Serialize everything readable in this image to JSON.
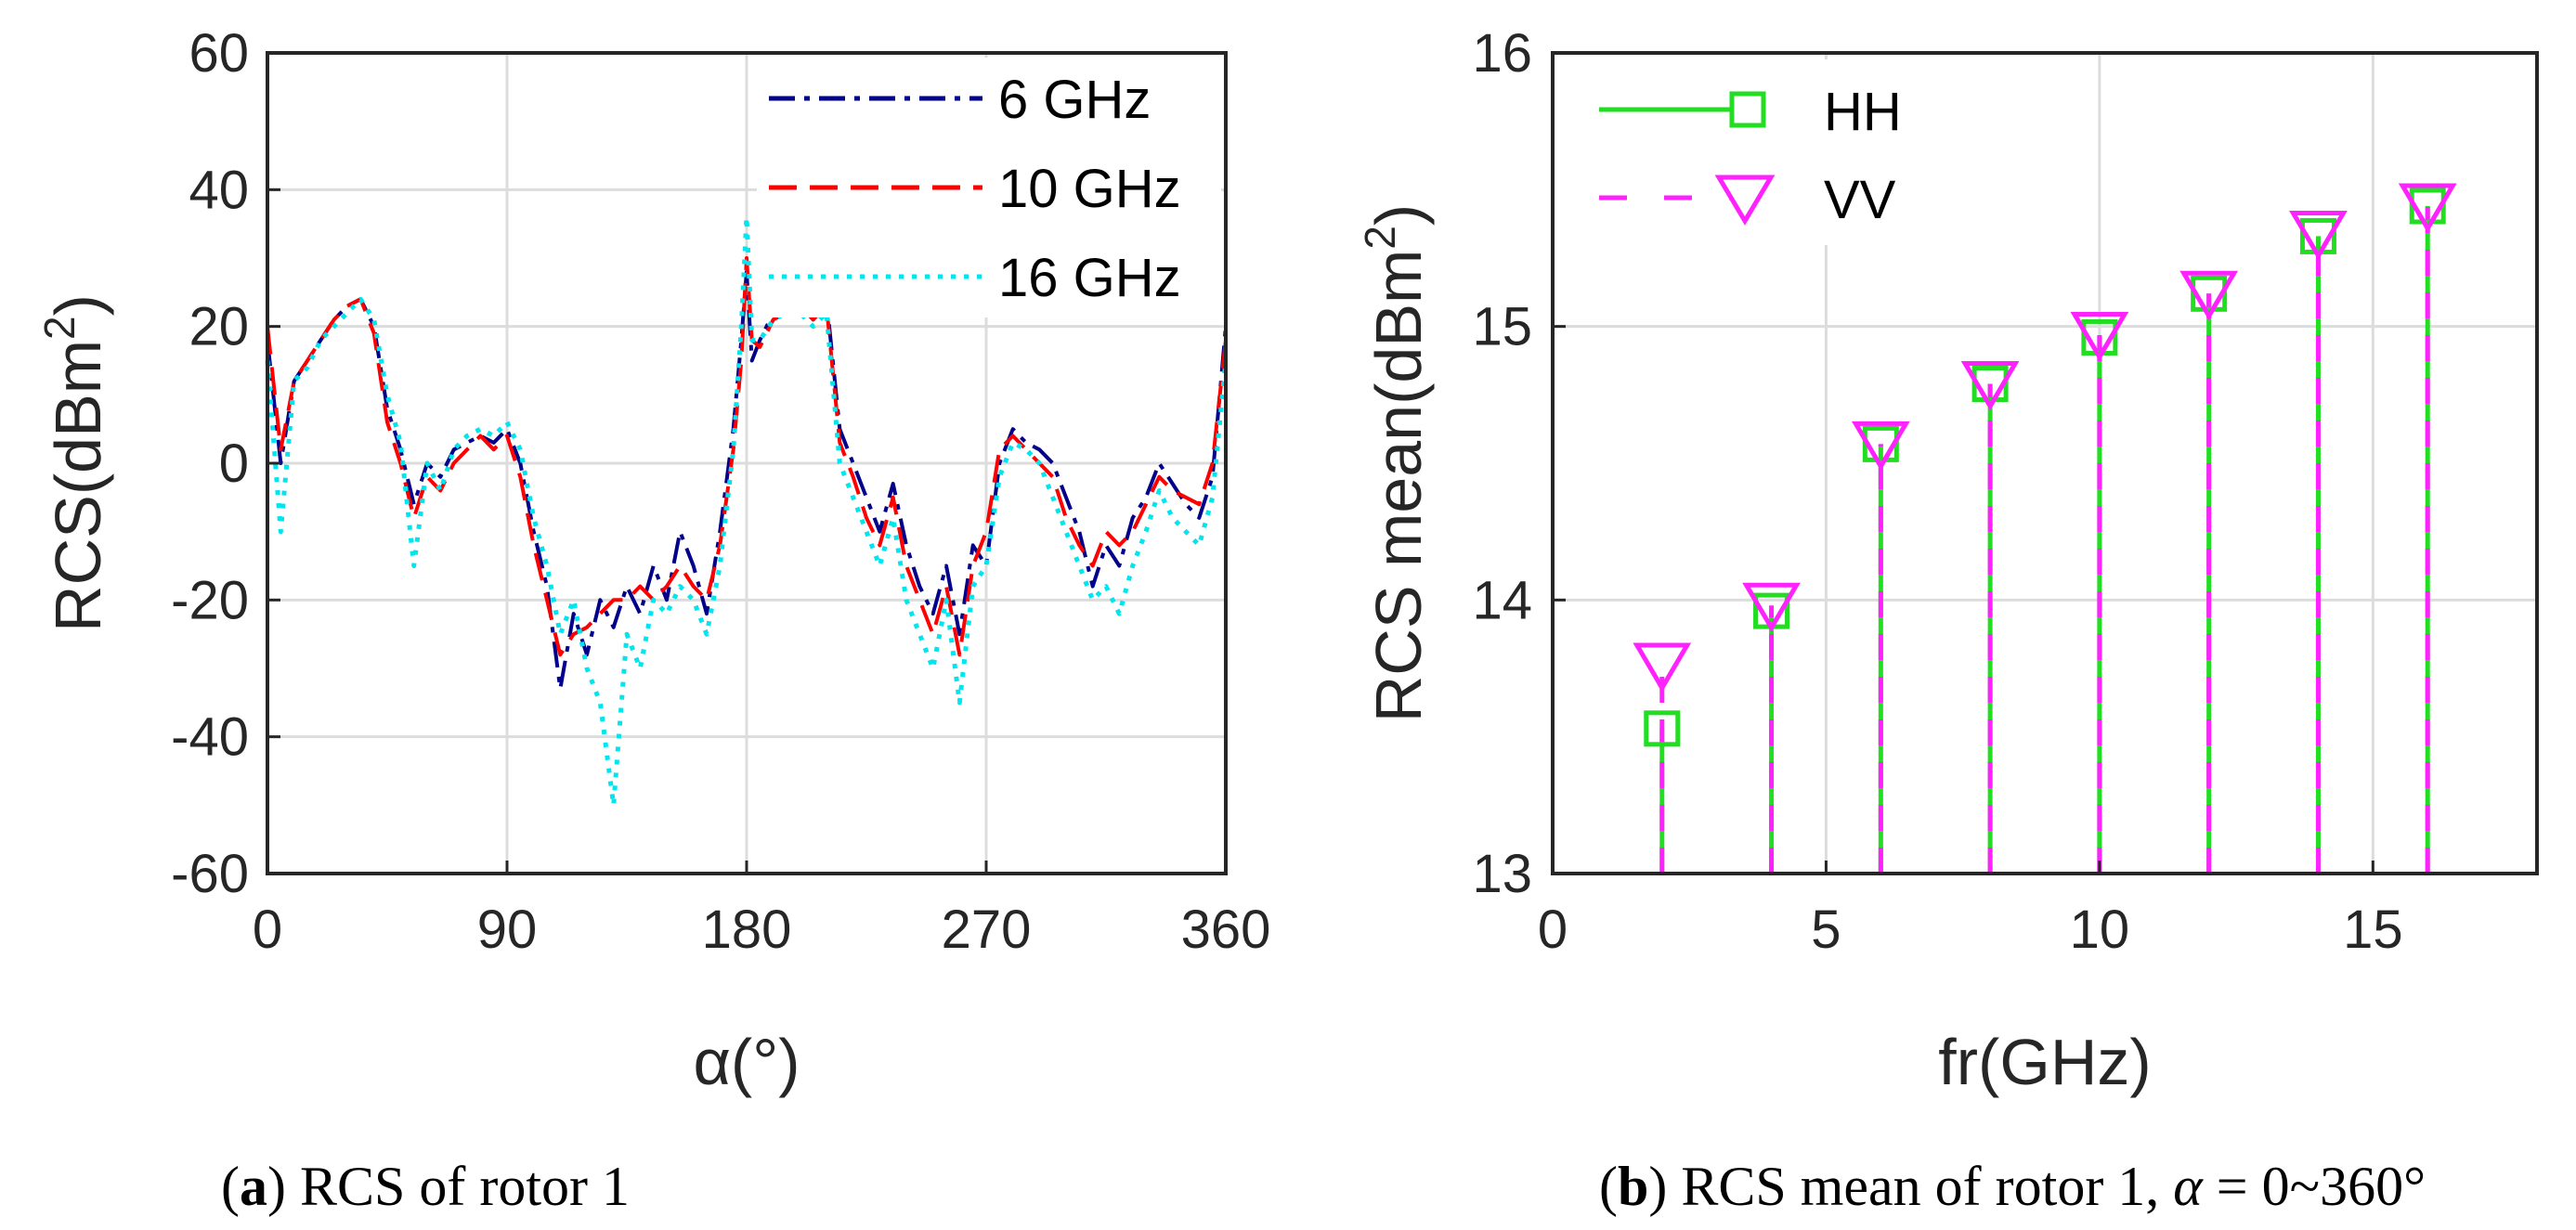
{
  "captions": {
    "a": {
      "letter": "a",
      "text": " RCS of rotor 1"
    },
    "b": {
      "letter": "b",
      "text": " RCS mean of rotor 1, ",
      "alpha": "α",
      "range": " = 0~360°"
    }
  },
  "chart_data": [
    {
      "id": "a",
      "type": "line",
      "title": "",
      "xlabel": "α(°)",
      "ylabel_main": "RCS(dBm",
      "ylabel_sup": "2",
      "ylabel_close": ")",
      "xlim": [
        0,
        360
      ],
      "ylim": [
        -60,
        60
      ],
      "xticks": [
        "0",
        "90",
        "180",
        "270",
        "360"
      ],
      "yticks": [
        "-60",
        "-40",
        "-20",
        "0",
        "20",
        "40",
        "60"
      ],
      "grid": true,
      "legend_position": "top-right",
      "colors": {
        "6 GHz": "#00008b",
        "10 GHz": "#ff0000",
        "16 GHz": "#00e5ee"
      },
      "x": [
        0,
        5,
        10,
        15,
        20,
        25,
        30,
        35,
        40,
        45,
        50,
        55,
        60,
        65,
        70,
        75,
        80,
        85,
        90,
        95,
        100,
        105,
        110,
        115,
        120,
        125,
        130,
        135,
        140,
        145,
        150,
        155,
        160,
        165,
        170,
        175,
        178,
        180,
        182,
        185,
        190,
        195,
        200,
        205,
        210,
        215,
        220,
        225,
        230,
        235,
        240,
        245,
        250,
        255,
        260,
        265,
        270,
        275,
        280,
        285,
        290,
        295,
        300,
        305,
        310,
        315,
        320,
        325,
        330,
        335,
        340,
        345,
        350,
        355,
        360
      ],
      "series": [
        {
          "name": "6 GHz",
          "values": [
            18,
            0,
            12,
            15,
            18,
            21,
            23,
            24,
            20,
            8,
            2,
            -6,
            0,
            -2,
            2,
            3,
            4,
            3,
            5,
            0,
            -10,
            -18,
            -33,
            -22,
            -28,
            -20,
            -24,
            -18,
            -22,
            -15,
            -20,
            -10,
            -15,
            -22,
            -10,
            5,
            18,
            28,
            15,
            18,
            22,
            22,
            23,
            21,
            24,
            5,
            0,
            -5,
            -10,
            -3,
            -12,
            -18,
            -22,
            -15,
            -25,
            -12,
            -15,
            0,
            5,
            3,
            2,
            0,
            -5,
            -10,
            -18,
            -12,
            -15,
            -8,
            -5,
            0,
            -3,
            -6,
            -8,
            -2,
            20
          ]
        },
        {
          "name": "10 GHz",
          "values": [
            20,
            2,
            12,
            15,
            18,
            21,
            23,
            24,
            19,
            6,
            0,
            -8,
            -2,
            -4,
            0,
            2,
            4,
            2,
            4,
            -2,
            -12,
            -20,
            -28,
            -25,
            -24,
            -22,
            -20,
            -20,
            -18,
            -20,
            -18,
            -15,
            -18,
            -20,
            -12,
            2,
            15,
            30,
            18,
            17,
            21,
            22,
            23,
            21,
            23,
            3,
            -2,
            -8,
            -12,
            -5,
            -15,
            -20,
            -25,
            -18,
            -28,
            -15,
            -10,
            2,
            4,
            2,
            0,
            -2,
            -8,
            -12,
            -15,
            -10,
            -12,
            -10,
            -6,
            -2,
            -4,
            -5,
            -6,
            0,
            18
          ]
        },
        {
          "name": "16 GHz",
          "values": [
            15,
            -10,
            12,
            14,
            18,
            20,
            22,
            24,
            21,
            10,
            3,
            -15,
            0,
            -4,
            2,
            4,
            5,
            4,
            6,
            2,
            -8,
            -15,
            -25,
            -20,
            -30,
            -35,
            -50,
            -25,
            -30,
            -20,
            -22,
            -18,
            -20,
            -25,
            -15,
            2,
            20,
            36,
            18,
            18,
            21,
            22,
            22,
            20,
            22,
            0,
            -5,
            -10,
            -15,
            -8,
            -20,
            -25,
            -30,
            -20,
            -35,
            -18,
            -15,
            -2,
            3,
            2,
            0,
            -5,
            -10,
            -15,
            -20,
            -18,
            -22,
            -15,
            -10,
            -4,
            -8,
            -10,
            -12,
            -5,
            15
          ]
        }
      ]
    },
    {
      "id": "b",
      "type": "stem",
      "title": "",
      "xlabel": "fr(GHz)",
      "ylabel_main": "RCS mean(dBm",
      "ylabel_sup": "2",
      "ylabel_close": ")",
      "xlim": [
        0,
        18
      ],
      "ylim": [
        13,
        16
      ],
      "xticks": [
        "0",
        "5",
        "10",
        "15"
      ],
      "yticks": [
        "13",
        "14",
        "15",
        "16"
      ],
      "grid": true,
      "legend_position": "top-left",
      "colors": {
        "HH": "#22dd22",
        "VV": "#ff22ff"
      },
      "x": [
        2,
        4,
        6,
        8,
        10,
        12,
        14,
        16
      ],
      "series": [
        {
          "name": "HH",
          "marker": "square",
          "values": [
            13.53,
            13.96,
            14.57,
            14.79,
            14.96,
            15.12,
            15.33,
            15.44
          ]
        },
        {
          "name": "VV",
          "marker": "triangle-down",
          "values": [
            13.76,
            13.98,
            14.57,
            14.79,
            14.97,
            15.12,
            15.34,
            15.44
          ]
        }
      ]
    }
  ]
}
